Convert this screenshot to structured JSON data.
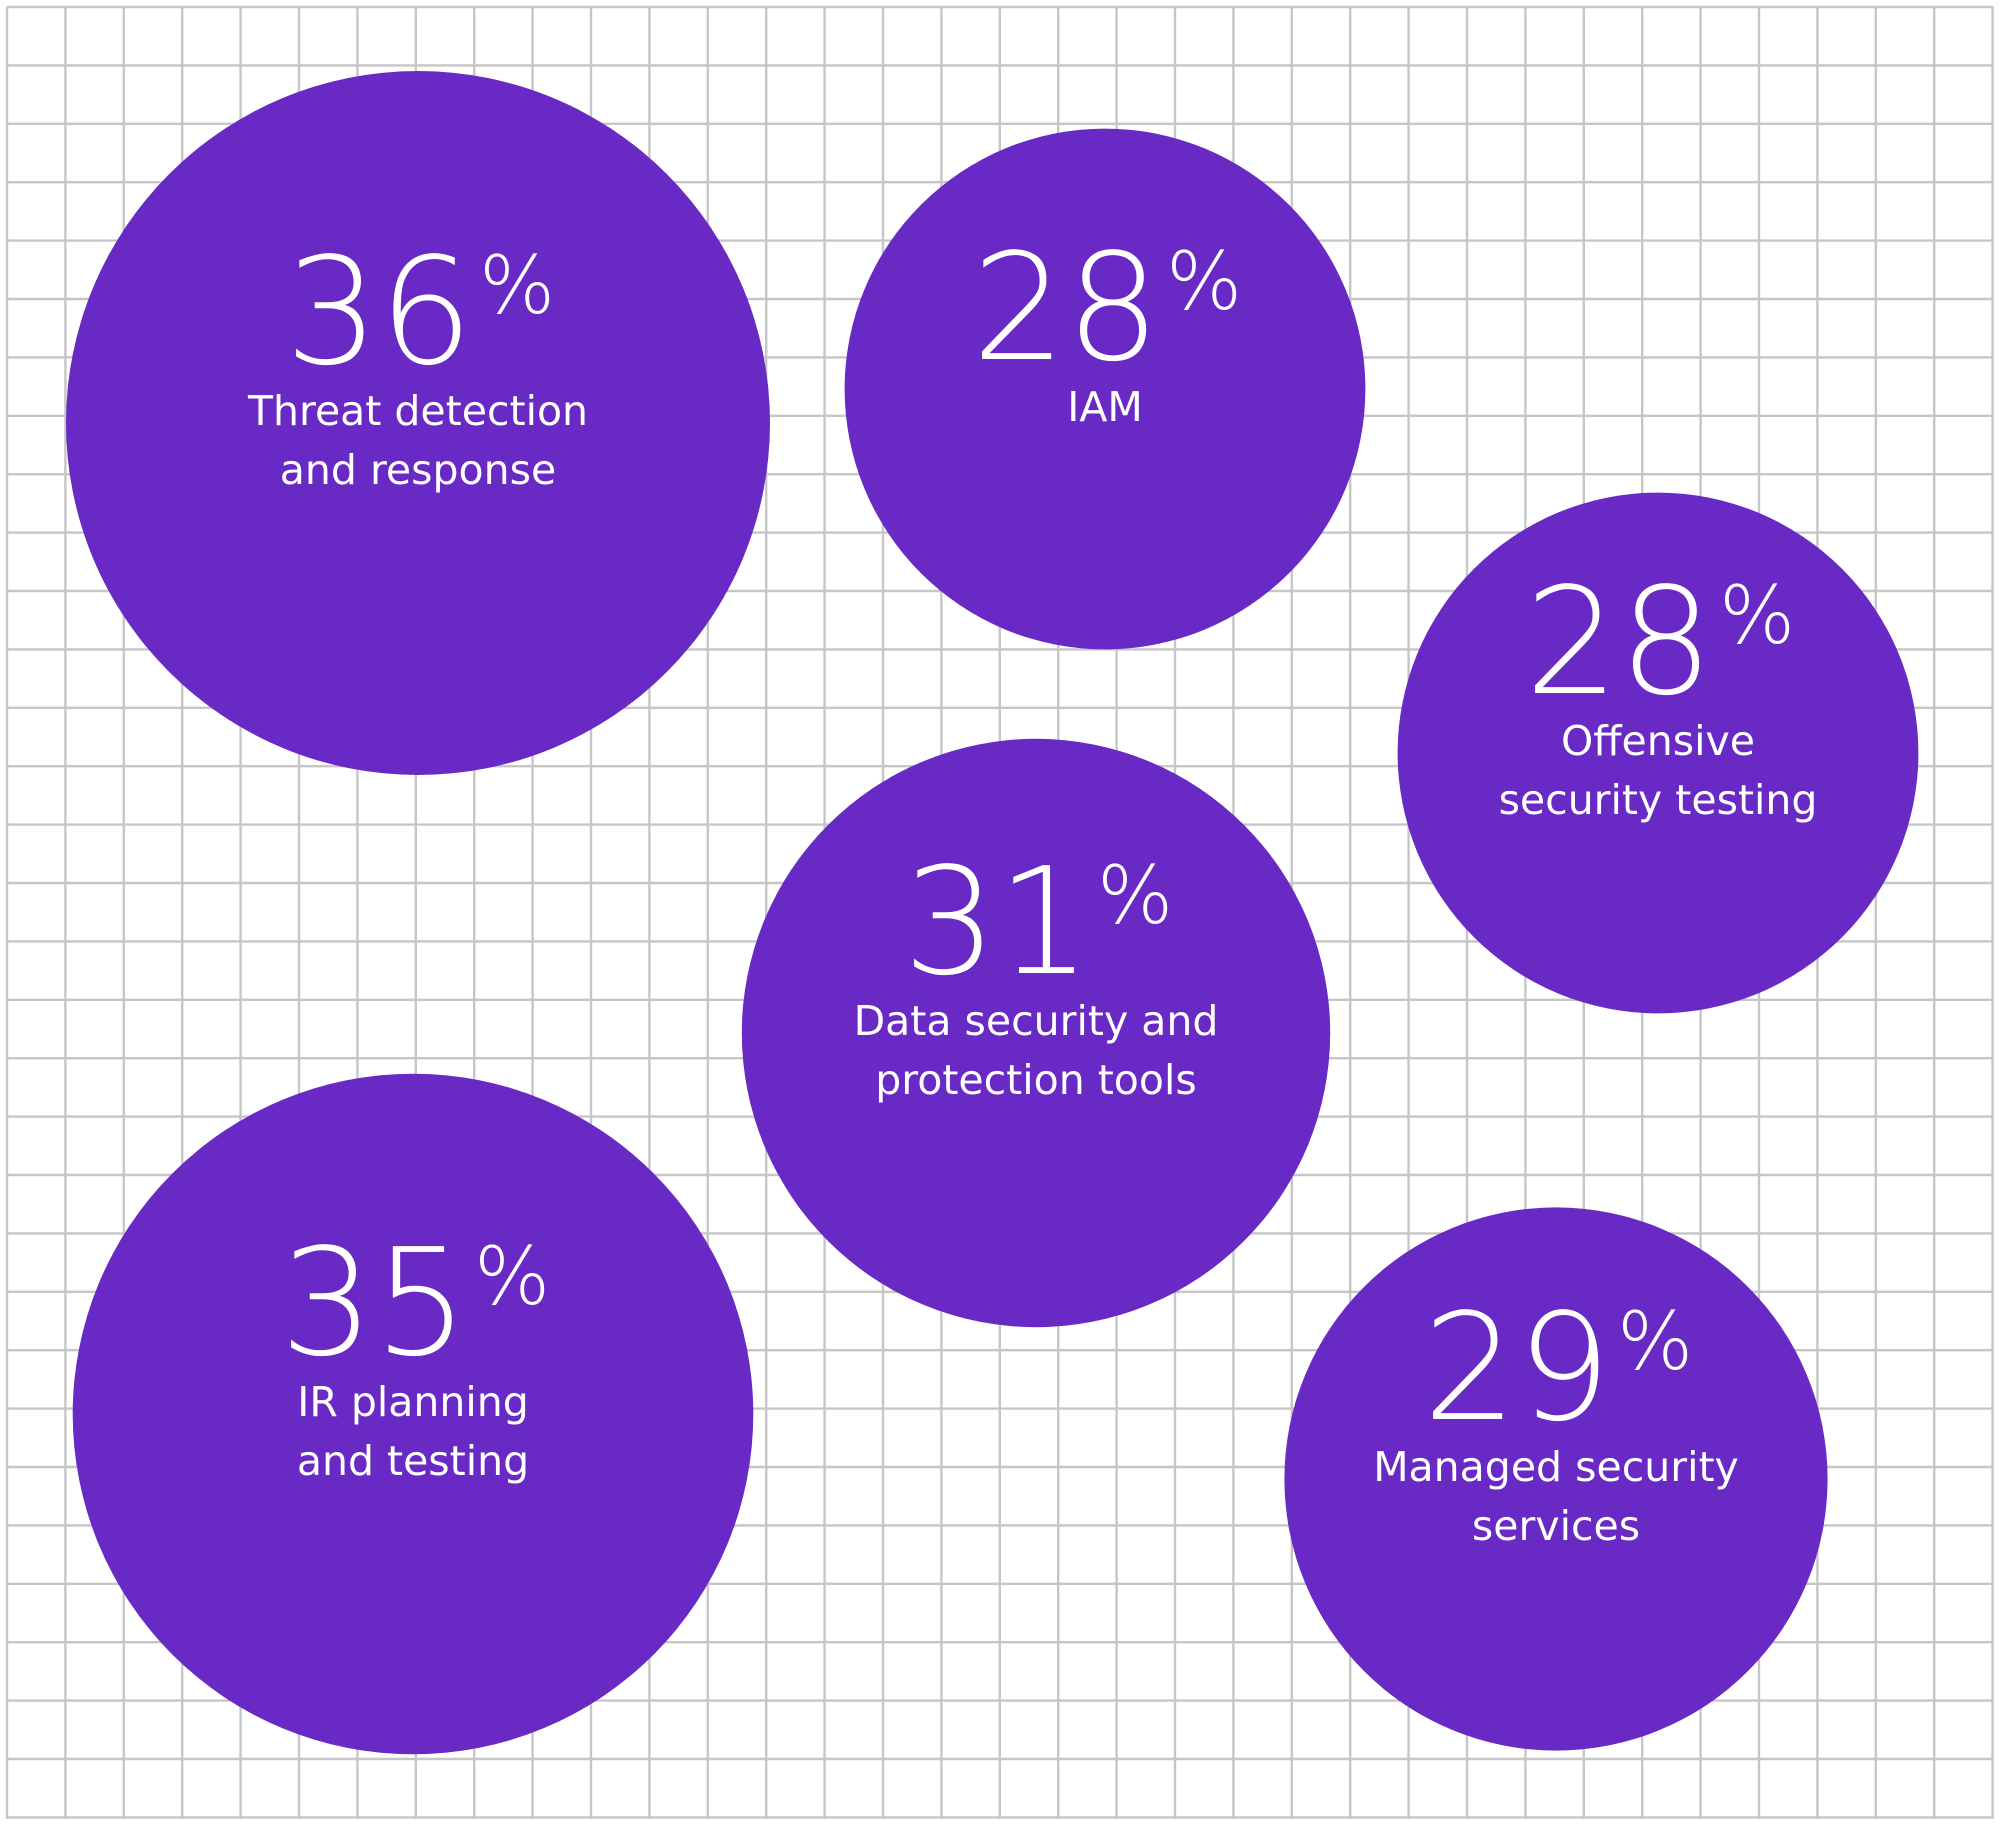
{
  "colors": {
    "bubble": "#6829c4",
    "text": "#ffffff",
    "grid": "#c6c6c6",
    "background": "#ffffff"
  },
  "chart_data": {
    "type": "bubble",
    "grid": true,
    "legend": "none",
    "unit": "%",
    "items": [
      {
        "value": 36,
        "label_lines": [
          "Threat detection",
          "and response"
        ]
      },
      {
        "value": 28,
        "label_lines": [
          "IAM"
        ]
      },
      {
        "value": 28,
        "label_lines": [
          "Offensive",
          "security testing"
        ]
      },
      {
        "value": 31,
        "label_lines": [
          "Data security and",
          "protection tools"
        ]
      },
      {
        "value": 35,
        "label_lines": [
          "IR planning",
          "and testing"
        ]
      },
      {
        "value": 29,
        "label_lines": [
          "Managed security",
          "services"
        ]
      }
    ]
  }
}
